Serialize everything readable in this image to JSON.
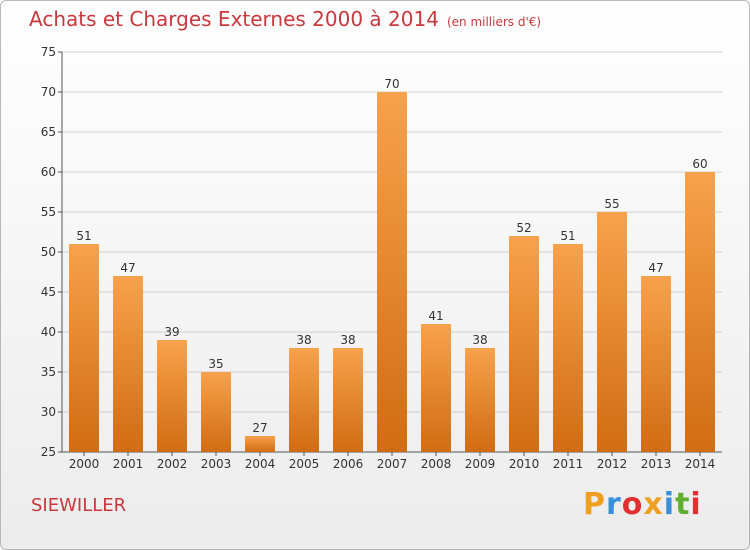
{
  "title": "Achats et Charges Externes 2000 à 2014",
  "subtitle": "(en milliers d'€)",
  "place": "SIEWILLER",
  "brand": {
    "letters": [
      "P",
      "r",
      "o",
      "x",
      "i",
      "t",
      "i"
    ],
    "colors": [
      "#f0a020",
      "#3a8fd8",
      "#e03030",
      "#f0a020",
      "#3a8fd8",
      "#60b030",
      "#e03030"
    ]
  },
  "colors": {
    "bar_light": "#f7a24c",
    "bar_dark": "#d06c14",
    "grid": "#d0d0d0",
    "title": "#c8383c"
  },
  "chart_data": {
    "type": "bar",
    "title": "Achats et Charges Externes 2000 à 2014",
    "subtitle": "(en milliers d'€)",
    "categories": [
      "2000",
      "2001",
      "2002",
      "2003",
      "2004",
      "2005",
      "2006",
      "2007",
      "2008",
      "2009",
      "2010",
      "2011",
      "2012",
      "2013",
      "2014"
    ],
    "values": [
      51,
      47,
      39,
      35,
      27,
      38,
      38,
      70,
      41,
      38,
      52,
      51,
      55,
      47,
      60
    ],
    "ylim": [
      25,
      75
    ],
    "yticks": [
      25,
      30,
      35,
      40,
      45,
      50,
      55,
      60,
      65,
      70,
      75
    ],
    "grid": true
  }
}
